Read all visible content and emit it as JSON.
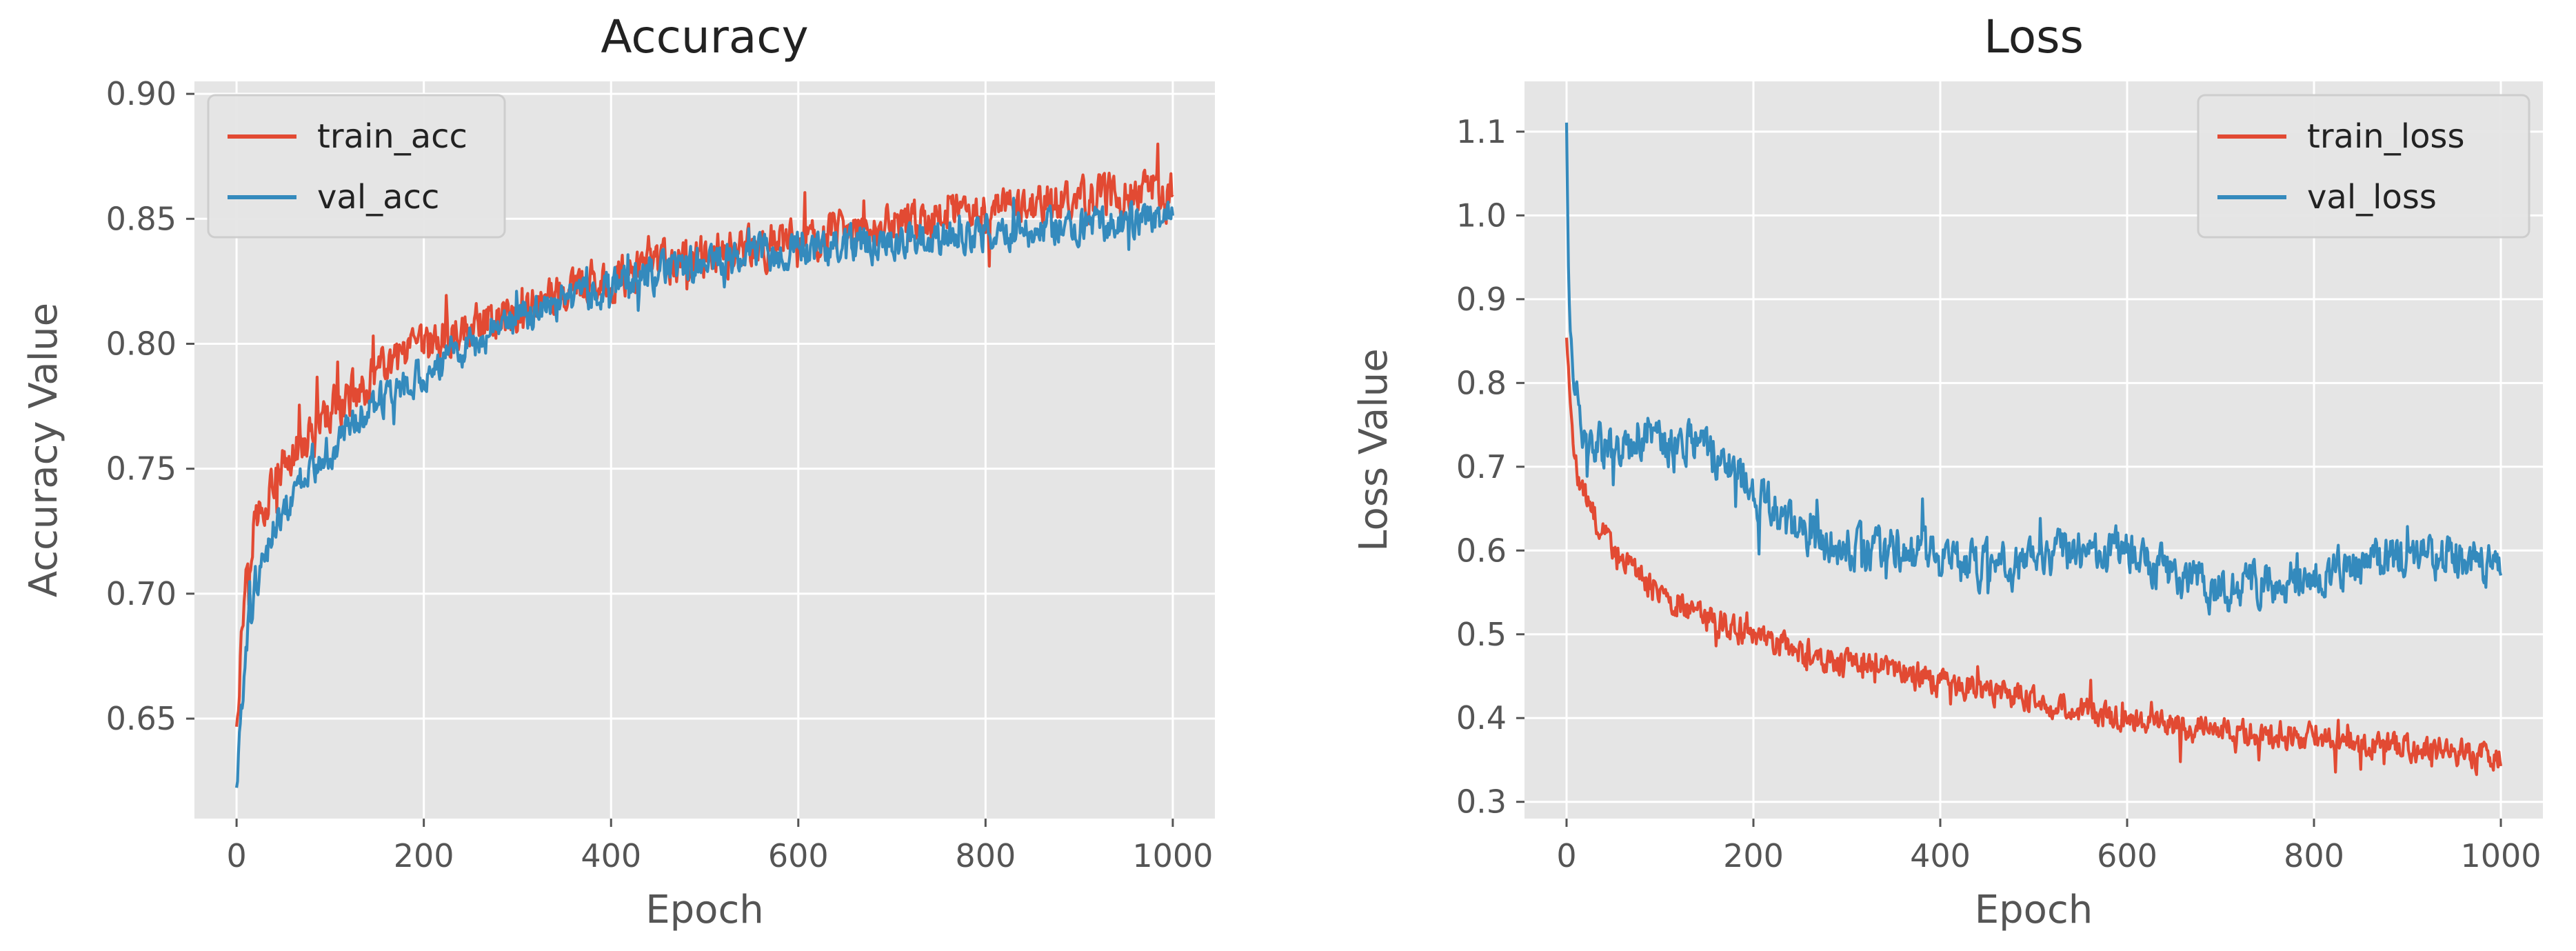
{
  "chart_data": [
    {
      "type": "line",
      "title": "Accuracy",
      "xlabel": "Epoch",
      "ylabel": "Accuracy Value",
      "xlim": [
        -45,
        1045
      ],
      "ylim": [
        0.61,
        0.905
      ],
      "xticks": [
        0,
        200,
        400,
        600,
        800,
        1000
      ],
      "xtick_labels": [
        "0",
        "200",
        "400",
        "600",
        "800",
        "1000"
      ],
      "yticks": [
        0.65,
        0.7,
        0.75,
        0.8,
        0.85,
        0.9
      ],
      "ytick_labels": [
        "0.65",
        "0.70",
        "0.75",
        "0.80",
        "0.85",
        "0.90"
      ],
      "grid": true,
      "legend_position": "upper-left",
      "series": [
        {
          "name": "train_acc",
          "color": "#E24A33",
          "x": [
            0,
            10,
            20,
            40,
            60,
            80,
            100,
            125,
            150,
            175,
            200,
            250,
            300,
            350,
            400,
            450,
            500,
            550,
            600,
            650,
            700,
            750,
            800,
            850,
            900,
            950,
            1000
          ],
          "y": [
            0.65,
            0.71,
            0.73,
            0.745,
            0.755,
            0.765,
            0.772,
            0.78,
            0.787,
            0.793,
            0.798,
            0.807,
            0.814,
            0.82,
            0.826,
            0.831,
            0.835,
            0.838,
            0.841,
            0.844,
            0.847,
            0.85,
            0.853,
            0.856,
            0.858,
            0.86,
            0.861
          ],
          "noise": 0.013
        },
        {
          "name": "val_acc",
          "color": "#348ABD",
          "x": [
            0,
            10,
            20,
            40,
            60,
            80,
            100,
            125,
            150,
            175,
            200,
            250,
            300,
            350,
            400,
            450,
            500,
            550,
            600,
            650,
            700,
            750,
            800,
            850,
            900,
            950,
            1000
          ],
          "y": [
            0.625,
            0.68,
            0.705,
            0.725,
            0.74,
            0.75,
            0.757,
            0.767,
            0.775,
            0.782,
            0.788,
            0.8,
            0.81,
            0.817,
            0.823,
            0.828,
            0.832,
            0.835,
            0.837,
            0.839,
            0.841,
            0.843,
            0.845,
            0.846,
            0.847,
            0.848,
            0.849
          ],
          "noise": 0.011
        }
      ]
    },
    {
      "type": "line",
      "title": "Loss",
      "xlabel": "Epoch",
      "ylabel": "Loss Value",
      "xlim": [
        -45,
        1045
      ],
      "ylim": [
        0.28,
        1.16
      ],
      "xticks": [
        0,
        200,
        400,
        600,
        800,
        1000
      ],
      "xtick_labels": [
        "0",
        "200",
        "400",
        "600",
        "800",
        "1000"
      ],
      "yticks": [
        0.3,
        0.4,
        0.5,
        0.6,
        0.7,
        0.8,
        0.9,
        1.0,
        1.1
      ],
      "ytick_labels": [
        "0.3",
        "0.4",
        "0.5",
        "0.6",
        "0.7",
        "0.8",
        "0.9",
        "1.0",
        "1.1"
      ],
      "grid": true,
      "legend_position": "upper-right",
      "series": [
        {
          "name": "train_loss",
          "color": "#E24A33",
          "x": [
            0,
            5,
            10,
            20,
            40,
            60,
            80,
            100,
            125,
            150,
            175,
            200,
            250,
            300,
            350,
            400,
            450,
            500,
            550,
            600,
            650,
            700,
            750,
            800,
            850,
            900,
            950,
            1000
          ],
          "y": [
            0.86,
            0.75,
            0.7,
            0.66,
            0.62,
            0.59,
            0.565,
            0.55,
            0.535,
            0.52,
            0.51,
            0.5,
            0.48,
            0.465,
            0.455,
            0.445,
            0.435,
            0.42,
            0.41,
            0.4,
            0.39,
            0.385,
            0.38,
            0.375,
            0.37,
            0.365,
            0.36,
            0.355
          ],
          "noise": 0.025
        },
        {
          "name": "val_loss",
          "color": "#348ABD",
          "x": [
            0,
            2,
            5,
            10,
            20,
            40,
            60,
            80,
            100,
            125,
            150,
            175,
            200,
            250,
            300,
            350,
            400,
            450,
            500,
            550,
            600,
            650,
            700,
            750,
            800,
            850,
            900,
            950,
            1000
          ],
          "y": [
            1.12,
            0.95,
            0.85,
            0.78,
            0.74,
            0.72,
            0.725,
            0.73,
            0.73,
            0.725,
            0.72,
            0.7,
            0.67,
            0.62,
            0.6,
            0.6,
            0.59,
            0.58,
            0.585,
            0.6,
            0.6,
            0.57,
            0.55,
            0.56,
            0.57,
            0.58,
            0.59,
            0.59,
            0.58
          ],
          "noise": 0.04
        }
      ]
    }
  ]
}
